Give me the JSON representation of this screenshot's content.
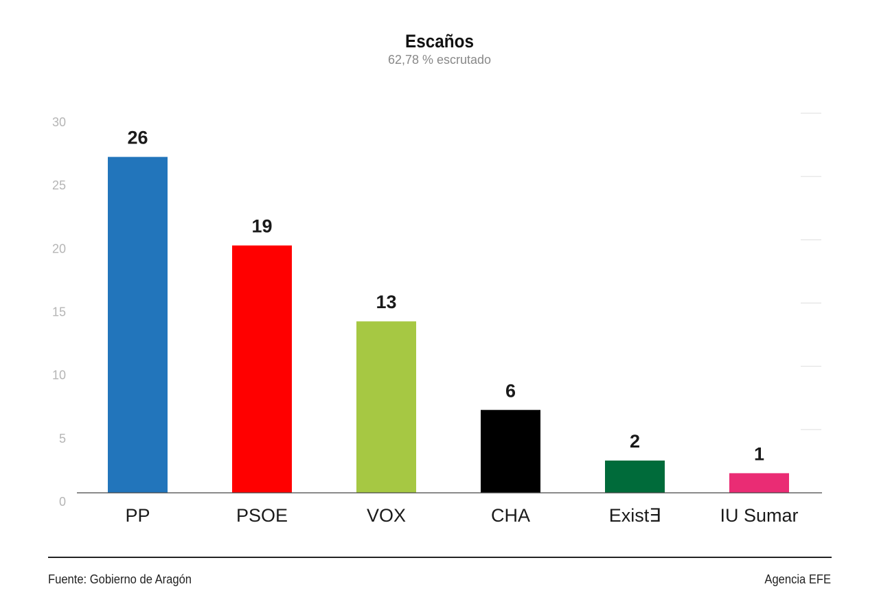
{
  "chart_data": {
    "type": "bar",
    "title": "Escaños",
    "subtitle": "62,78 % escrutado",
    "categories": [
      "PP",
      "PSOE",
      "VOX",
      "CHA",
      "Exist∃",
      "IU Sumar"
    ],
    "values": [
      26,
      19,
      13,
      6,
      2,
      1
    ],
    "colors": [
      "#2275bb",
      "#ff0000",
      "#a6c843",
      "#000000",
      "#006b3a",
      "#ea2c74"
    ],
    "value_labels": [
      "26",
      "19",
      "13",
      "6",
      "2",
      "1"
    ],
    "y_ticks": [
      "0",
      "5",
      "10",
      "15",
      "20",
      "25",
      "30"
    ],
    "ylim": [
      0,
      30
    ],
    "grid": false,
    "legend": "none"
  },
  "footer": {
    "source": "Fuente: Gobierno de Aragón",
    "credit": "Agencia EFE"
  }
}
